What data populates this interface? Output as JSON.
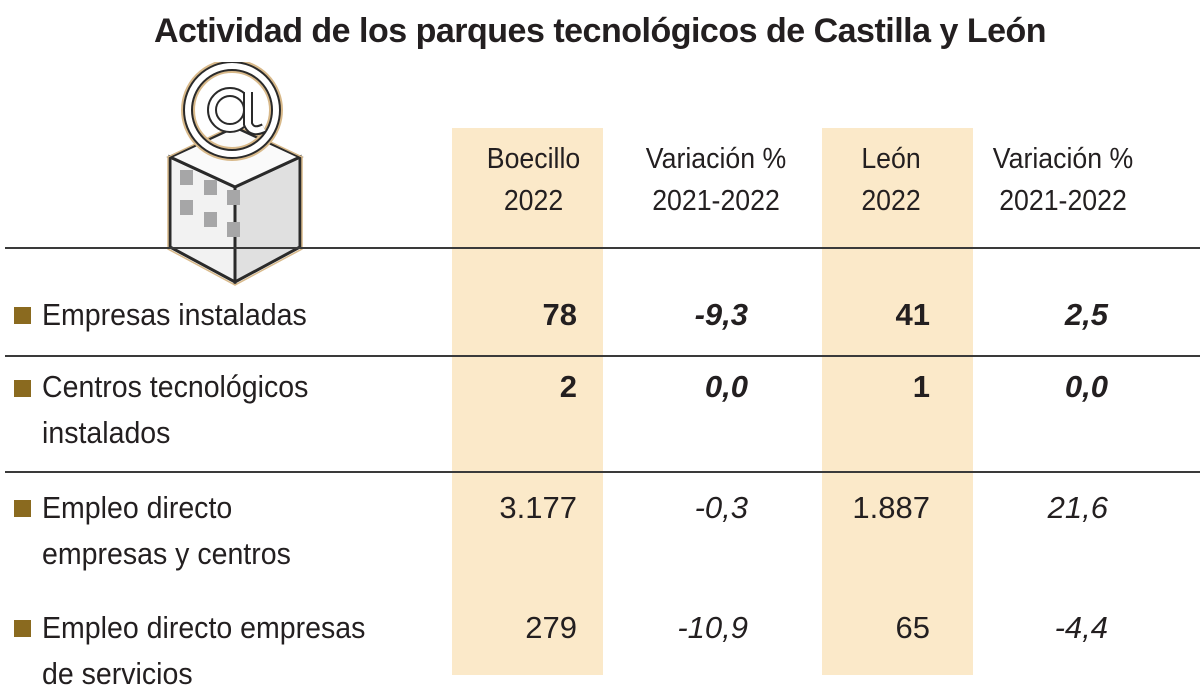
{
  "title": "Actividad de los parques tecnológicos de Castilla y León",
  "colors": {
    "highlight_band": "#fbe9c9",
    "bullet": "#8a6a1f",
    "text": "#231f20"
  },
  "icon": "at-sign-building-icon",
  "chart_data": {
    "type": "table",
    "columns": [
      {
        "line1": "Boecillo",
        "line2": "2022"
      },
      {
        "line1": "Variación %",
        "line2": "2021-2022"
      },
      {
        "line1": "León",
        "line2": "2022"
      },
      {
        "line1": "Variación %",
        "line2": "2021-2022"
      }
    ],
    "rows": [
      {
        "label1": "Empresas instaladas",
        "label2": "",
        "values": [
          "78",
          "-9,3",
          "41",
          "2,5"
        ]
      },
      {
        "label1": "Centros tecnológicos",
        "label2": "instalados",
        "values": [
          "2",
          "0,0",
          "1",
          "0,0"
        ]
      },
      {
        "label1": "Empleo directo",
        "label2": "empresas y centros",
        "values": [
          "3.177",
          "-0,3",
          "1.887",
          "21,6"
        ]
      },
      {
        "label1": "Empleo directo empresas",
        "label2": "de servicios",
        "values": [
          "279",
          "-10,9",
          "65",
          "-4,4"
        ]
      }
    ]
  }
}
